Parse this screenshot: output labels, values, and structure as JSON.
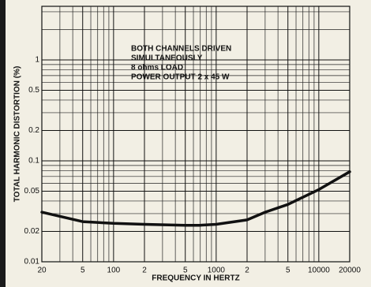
{
  "chart_data": {
    "type": "line",
    "x_label": "FREQUENCY IN HERTZ",
    "y_label": "TOTAL HARMONIC DISTORTION (%)",
    "annotation": [
      "BOTH CHANNELS DRIVEN",
      "SIMULTANEOUSLY",
      "8 ohms LOAD",
      "POWER OUTPUT 2 x 45 W"
    ],
    "x": [
      20,
      50,
      100,
      200,
      500,
      700,
      1000,
      2000,
      3000,
      5000,
      10000,
      20000
    ],
    "series": [
      {
        "name": "THD",
        "color": "#111111",
        "values": [
          0.031,
          0.025,
          0.024,
          0.0235,
          0.023,
          0.023,
          0.0235,
          0.026,
          0.031,
          0.037,
          0.052,
          0.078
        ]
      }
    ],
    "xscale": "log",
    "yscale": "log",
    "xlim": [
      20,
      20000
    ],
    "ylim": [
      0.01,
      3.4
    ],
    "xticks": [
      20,
      {
        "value": 50,
        "label": "5"
      },
      100,
      {
        "value": 200,
        "label": "2"
      },
      {
        "value": 500,
        "label": "5"
      },
      1000,
      {
        "value": 2000,
        "label": "2"
      },
      {
        "value": 5000,
        "label": "5"
      },
      10000,
      20000
    ],
    "yticks": [
      0.01,
      0.02,
      0.05,
      0.1,
      0.2,
      0.5,
      1
    ],
    "xgrid": [
      30,
      40,
      60,
      70,
      80,
      90,
      300,
      400,
      600,
      700,
      800,
      900,
      3000,
      4000,
      6000,
      7000,
      8000,
      9000
    ],
    "ygrid": [
      0.03,
      0.04,
      0.06,
      0.07,
      0.08,
      0.09,
      0.3,
      0.4,
      0.6,
      0.7,
      0.8,
      0.9,
      2,
      3
    ],
    "grid": true
  }
}
